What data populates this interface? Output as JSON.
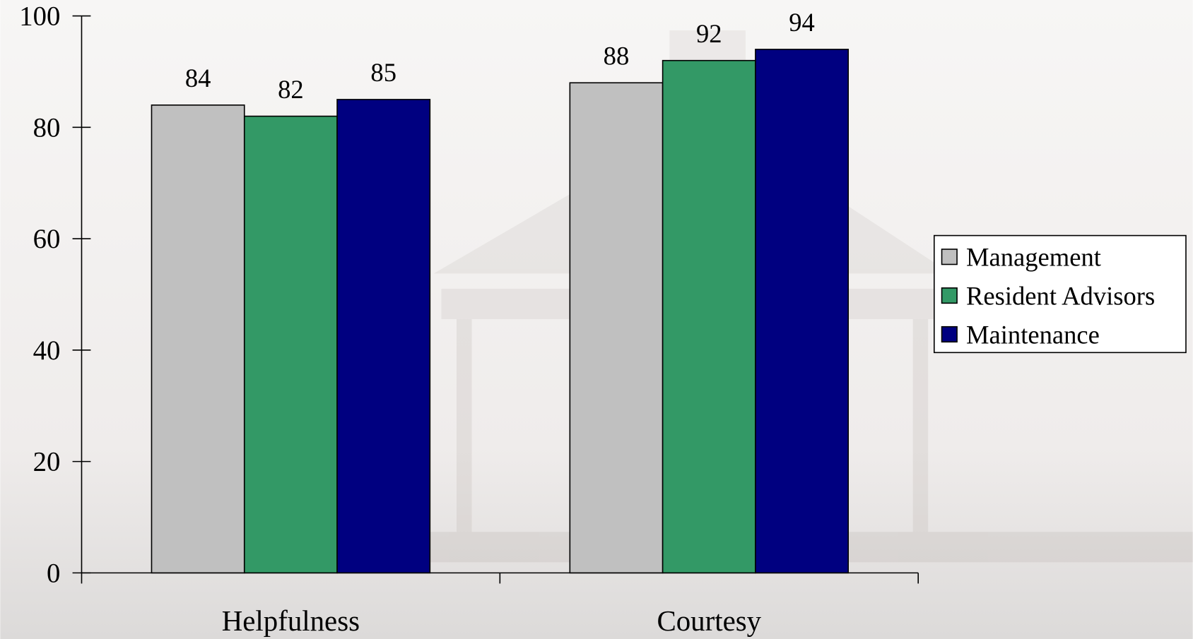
{
  "chart_data": {
    "type": "bar",
    "categories": [
      "Helpfulness",
      "Courtesy"
    ],
    "series": [
      {
        "name": "Management",
        "color": "#c0c0c0",
        "values": [
          84,
          88
        ]
      },
      {
        "name": "Resident Advisors",
        "color": "#339966",
        "values": [
          82,
          92
        ]
      },
      {
        "name": "Maintenance",
        "color": "#000080",
        "values": [
          85,
          94
        ]
      }
    ],
    "ylim": [
      0,
      100
    ],
    "yticks": [
      0,
      20,
      40,
      60,
      80,
      100
    ],
    "legend": "right"
  }
}
